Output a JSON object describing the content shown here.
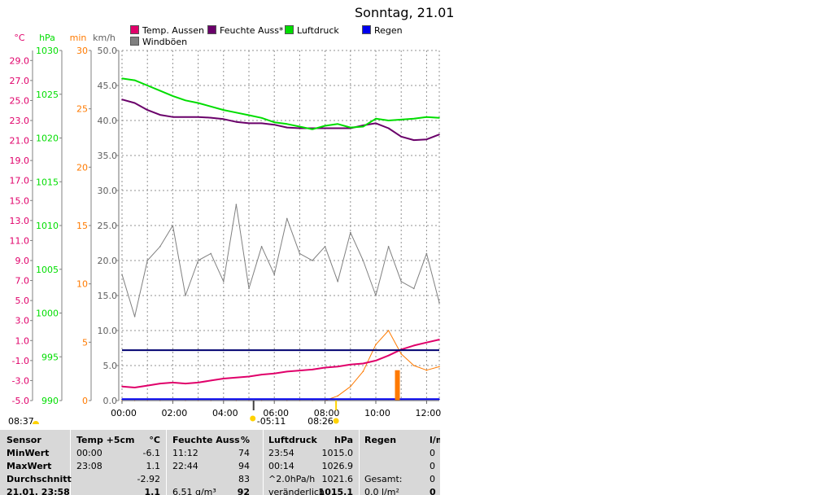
{
  "title": "Sonntag, 21.01",
  "colors": {
    "temp": "#e0006a",
    "humidity": "#6a006a",
    "pressure": "#00dd00",
    "rain": "#0000ee",
    "gust": "#808080",
    "sunshine": "#ff7a00",
    "threshold": "#000070",
    "grid": "#909090"
  },
  "legend": [
    {
      "label": "Temp. Aussen",
      "color": "#e0006a"
    },
    {
      "label": "Feuchte Auss*",
      "color": "#6a006a"
    },
    {
      "label": "Luftdruck",
      "color": "#00dd00"
    },
    {
      "label": "Regen",
      "color": "#0000ee"
    },
    {
      "label": "Windböen",
      "color": "#808080"
    }
  ],
  "axes": {
    "temp": {
      "unit": "°C",
      "ticks": [
        "29.0",
        "27.0",
        "25.0",
        "23.0",
        "21.0",
        "19.0",
        "17.0",
        "15.0",
        "13.0",
        "11.0",
        "9.0",
        "7.0",
        "5.0",
        "3.0",
        "1.0",
        "-1.0",
        "-3.0",
        "-5.0"
      ],
      "range": [
        -5,
        30
      ]
    },
    "pressure": {
      "unit": "hPa",
      "ticks": [
        "1030",
        "1025",
        "1020",
        "1015",
        "1010",
        "1005",
        "1000",
        "995",
        "990"
      ],
      "range": [
        990,
        1030
      ]
    },
    "sunshine": {
      "unit": "min",
      "ticks": [
        "30",
        "25",
        "20",
        "15",
        "10",
        "5",
        "0"
      ],
      "range": [
        0,
        30
      ]
    },
    "wind": {
      "unit": "km/h",
      "ticks": [
        "50.0",
        "45.0",
        "40.0",
        "35.0",
        "30.0",
        "25.0",
        "20.0",
        "15.0",
        "10.0",
        "5.0",
        "0.0"
      ],
      "range": [
        0,
        50
      ]
    },
    "x": {
      "ticks": [
        "00:00",
        "02:00",
        "04:00",
        "06:00",
        "08:00",
        "10:00",
        "12:00"
      ]
    }
  },
  "sun": {
    "sunset_prev": "08:37",
    "moon": "05:11",
    "sunrise": "08:26"
  },
  "chart_data": {
    "type": "line",
    "x_hours": [
      0,
      0.5,
      1,
      1.5,
      2,
      2.5,
      3,
      3.5,
      4,
      4.5,
      5,
      5.5,
      6,
      6.5,
      7,
      7.5,
      8,
      8.5,
      9,
      9.5,
      10,
      10.5,
      11,
      11.5,
      12,
      12.5
    ],
    "series": [
      {
        "name": "Temp. Aussen",
        "axis": "temp",
        "values": [
          -3.6,
          -3.7,
          -3.5,
          -3.3,
          -3.2,
          -3.3,
          -3.2,
          -3.0,
          -2.8,
          -2.7,
          -2.6,
          -2.4,
          -2.3,
          -2.1,
          -2.0,
          -1.9,
          -1.7,
          -1.6,
          -1.4,
          -1.3,
          -1.0,
          -0.5,
          0.1,
          0.5,
          0.8,
          1.1
        ]
      },
      {
        "name": "Feuchte Auss*",
        "axis": "wind",
        "values": [
          43.0,
          42.5,
          41.5,
          40.8,
          40.5,
          40.5,
          40.5,
          40.4,
          40.2,
          39.8,
          39.6,
          39.6,
          39.4,
          39.0,
          38.9,
          38.9,
          38.9,
          38.9,
          38.9,
          39.3,
          39.6,
          38.9,
          37.7,
          37.2,
          37.3,
          38.0
        ]
      },
      {
        "name": "Luftdruck",
        "axis": "pressure",
        "values": [
          1026.8,
          1026.6,
          1026.0,
          1025.4,
          1024.8,
          1024.3,
          1024.0,
          1023.6,
          1023.2,
          1022.9,
          1022.6,
          1022.3,
          1021.8,
          1021.6,
          1021.3,
          1021.0,
          1021.4,
          1021.6,
          1021.2,
          1021.3,
          1022.2,
          1022.0,
          1022.1,
          1022.2,
          1022.4,
          1022.3
        ]
      },
      {
        "name": "Windböen",
        "axis": "wind",
        "values": [
          18,
          12,
          20,
          22,
          25,
          15,
          20,
          21,
          17,
          28,
          16,
          22,
          18,
          26,
          21,
          20,
          22,
          17,
          24,
          20,
          15,
          22,
          17,
          16,
          21,
          14
        ]
      },
      {
        "name": "Regen",
        "axis": "wind",
        "values": [
          0.2,
          0.2,
          0.2,
          0.2,
          0.2,
          0.2,
          0.2,
          0.2,
          0.2,
          0.2,
          0.2,
          0.2,
          0.2,
          0.2,
          0.2,
          0.2,
          0.2,
          0.2,
          0.2,
          0.2,
          0.2,
          0.2,
          0.2,
          0.2,
          0.2,
          0.2
        ]
      },
      {
        "axis": "sunshine",
        "values": [
          0,
          0,
          0,
          0,
          0,
          0,
          0,
          0,
          0,
          0,
          0,
          0,
          0,
          0,
          0,
          0,
          0,
          0.4,
          1.2,
          2.5,
          4.8,
          6.0,
          4.0,
          3.0,
          2.6,
          2.9
        ]
      }
    ],
    "threshold_line": {
      "axis": "wind",
      "value": 7.2
    },
    "sun_bar": {
      "x_hours": 10.85,
      "value": 2.6
    }
  },
  "table": {
    "headers": [
      "Sensor",
      "Temp +5cm",
      "°C",
      "Feuchte Auss",
      "%",
      "Luftdruck",
      "hPa",
      "Regen",
      "l/m"
    ],
    "rows": [
      [
        "MinWert",
        "00:00",
        "-6.1",
        "11:12",
        "74",
        "23:54",
        "1015.0",
        "",
        "0"
      ],
      [
        "MaxWert",
        "23:08",
        "1.1",
        "22:44",
        "94",
        "00:14",
        "1026.9",
        "",
        "0"
      ],
      [
        "Durchschnitt",
        "",
        "-2.92",
        "",
        "83",
        "^2.0hPa/h",
        "1021.6",
        "Gesamt:",
        "0"
      ],
      [
        "21.01. 23:58",
        "",
        "1.1",
        "6.51 g/m³",
        "92",
        "veränderlich",
        "1015.1",
        "0.0 l/m²",
        "0"
      ]
    ]
  }
}
